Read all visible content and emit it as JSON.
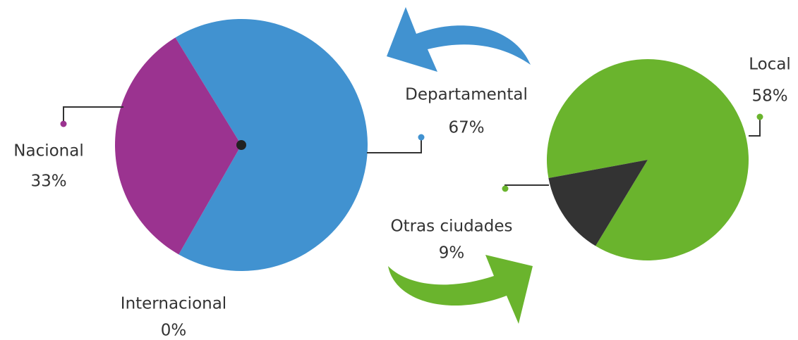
{
  "chart_data": [
    {
      "type": "pie",
      "categories": [
        "Departamental",
        "Nacional",
        "Internacional"
      ],
      "values": [
        67,
        33,
        0
      ],
      "value_labels": [
        "67%",
        "33%",
        "0%"
      ],
      "colors": [
        "#4192d0",
        "#9b3390",
        "#333333"
      ]
    },
    {
      "type": "pie",
      "categories": [
        "Local",
        "Otras ciudades"
      ],
      "values": [
        58,
        9
      ],
      "value_labels": [
        "58%",
        "9%"
      ],
      "colors": [
        "#6ab42d",
        "#333333"
      ]
    }
  ]
}
